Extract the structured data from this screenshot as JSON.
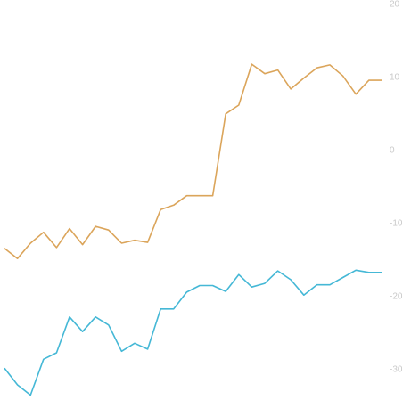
{
  "chart_data": {
    "type": "line",
    "title": "",
    "xlabel": "",
    "ylabel": "",
    "grid": false,
    "legend": "none",
    "ylim": [
      -32,
      20
    ],
    "y_ticks": [
      {
        "value": 20,
        "label": "20"
      },
      {
        "value": 10,
        "label": "10"
      },
      {
        "value": 0,
        "label": "0"
      },
      {
        "value": -10,
        "label": "-10"
      },
      {
        "value": -20,
        "label": "-20"
      },
      {
        "value": -30,
        "label": "-30"
      }
    ],
    "x": [
      0,
      1,
      2,
      3,
      4,
      5,
      6,
      7,
      8,
      9,
      10,
      11,
      12,
      13,
      14,
      15,
      16,
      17,
      18,
      19,
      20,
      21,
      22,
      23,
      24,
      25,
      26,
      27,
      28,
      29
    ],
    "series": [
      {
        "color": "#dba55b",
        "values": [
          -13.5,
          -14.9,
          -12.8,
          -11.3,
          -13.4,
          -10.8,
          -13.0,
          -10.5,
          -11.0,
          -12.8,
          -12.4,
          -12.7,
          -8.2,
          -7.6,
          -6.3,
          -6.3,
          -6.3,
          4.9,
          6.1,
          11.7,
          10.4,
          10.9,
          8.3,
          9.8,
          11.2,
          11.6,
          10.1,
          7.6,
          9.5,
          9.5
        ]
      },
      {
        "color": "#45b8d6",
        "values": [
          -29.9,
          -32.2,
          -33.6,
          -28.7,
          -27.8,
          -22.9,
          -24.9,
          -22.9,
          -24.0,
          -27.6,
          -26.5,
          -27.3,
          -21.8,
          -21.8,
          -19.5,
          -18.6,
          -18.6,
          -19.4,
          -17.1,
          -18.8,
          -18.3,
          -16.6,
          -17.8,
          -19.9,
          -18.5,
          -18.5,
          -17.5,
          -16.5,
          -16.8,
          -16.8
        ]
      }
    ]
  }
}
